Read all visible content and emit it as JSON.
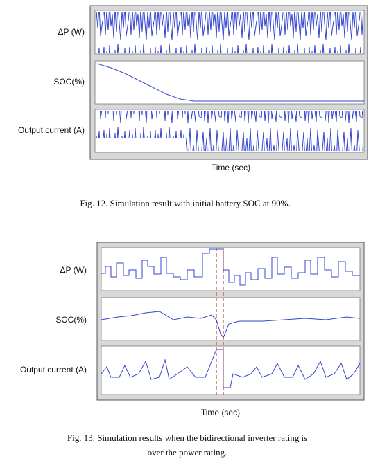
{
  "figures": [
    {
      "panel_labels": [
        "ΔP (W)",
        "SOC(%)",
        "Output current (A)"
      ],
      "x_label": "Time (sec)",
      "caption": "Fig. 12.  Simulation result with initial battery SOC at 90%."
    },
    {
      "panel_labels": [
        "ΔP (W)",
        "SOC(%)",
        "Output current (A)"
      ],
      "x_label": "Time (sec)",
      "caption_lines": [
        "Fig. 13. Simulation results when the bidirectional inverter rating is",
        "over the power rating."
      ]
    }
  ]
}
